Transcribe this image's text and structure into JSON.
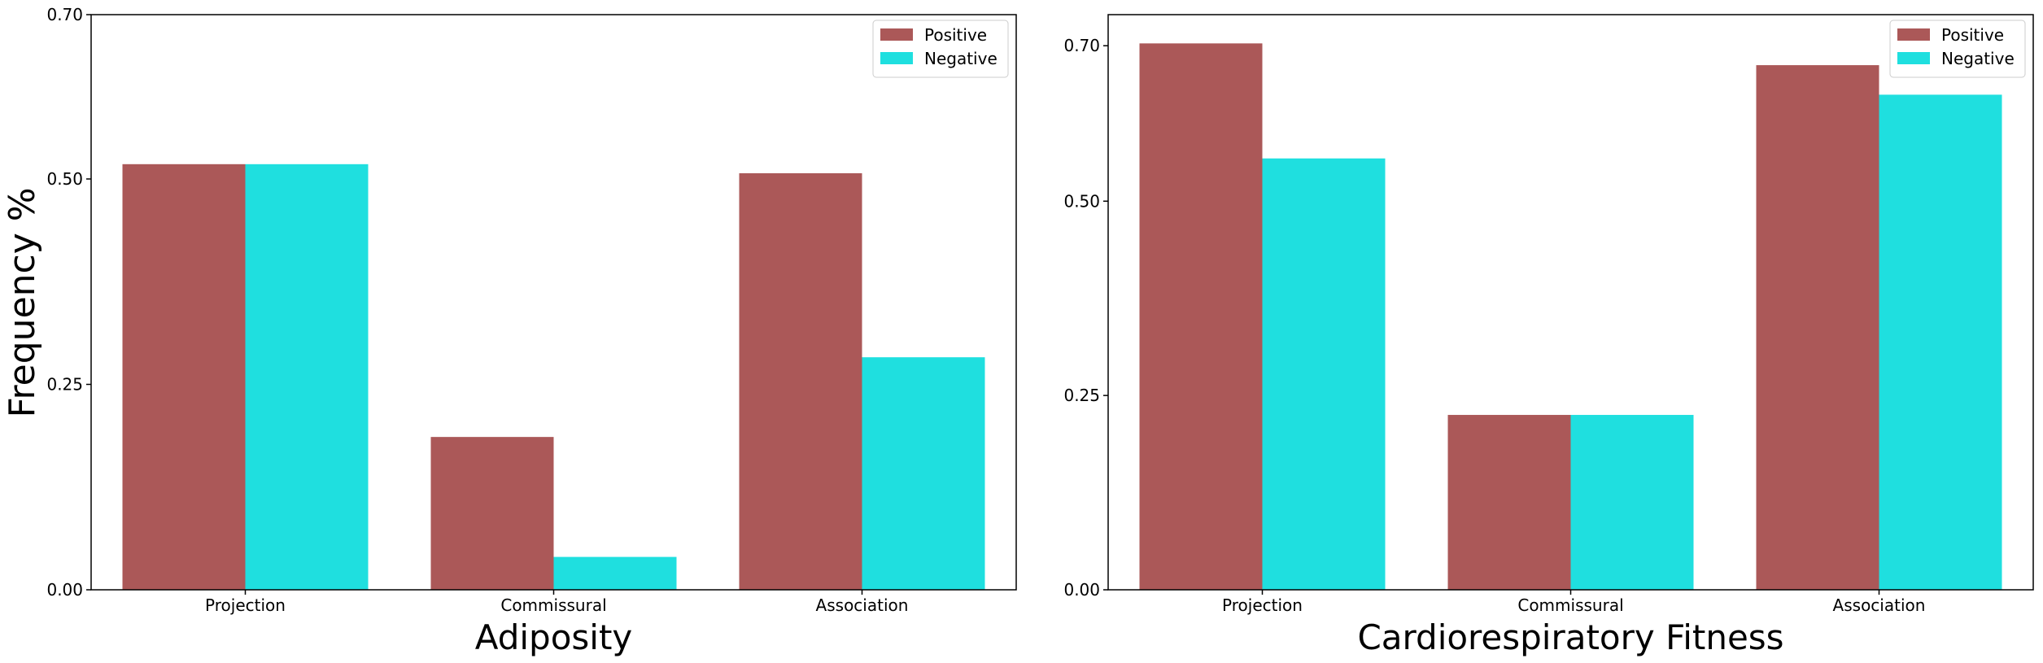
{
  "colors": {
    "positive": "#ab5858",
    "negative": "#1fdfdf",
    "frame": "#000000"
  },
  "shared_ylabel": "Frequency %",
  "chart_data": [
    {
      "type": "bar",
      "title": "",
      "xlabel": "Adiposity",
      "ylabel": "Frequency %",
      "categories": [
        "Projection",
        "Commissural",
        "Association"
      ],
      "ylim": [
        0,
        0.7
      ],
      "yticks": [
        0.0,
        0.25,
        0.5,
        0.7
      ],
      "ytick_labels": [
        "0.00",
        "0.25",
        "0.50",
        "0.70"
      ],
      "legend_position": "top-right",
      "grid": false,
      "series": [
        {
          "name": "Positive",
          "color": "#ab5858",
          "values": [
            0.518,
            0.186,
            0.507
          ]
        },
        {
          "name": "Negative",
          "color": "#1fdfdf",
          "values": [
            0.518,
            0.04,
            0.283
          ]
        }
      ]
    },
    {
      "type": "bar",
      "title": "",
      "xlabel": "Cardiorespiratory Fitness",
      "ylabel": "",
      "categories": [
        "Projection",
        "Commissural",
        "Association"
      ],
      "ylim": [
        0,
        0.74
      ],
      "yticks": [
        0.0,
        0.25,
        0.5,
        0.7
      ],
      "ytick_labels": [
        "0.00",
        "0.25",
        "0.50",
        "0.70"
      ],
      "legend_position": "top-right",
      "grid": false,
      "series": [
        {
          "name": "Positive",
          "color": "#ab5858",
          "values": [
            0.703,
            0.225,
            0.675
          ]
        },
        {
          "name": "Negative",
          "color": "#1fdfdf",
          "values": [
            0.555,
            0.225,
            0.637
          ]
        }
      ]
    }
  ]
}
